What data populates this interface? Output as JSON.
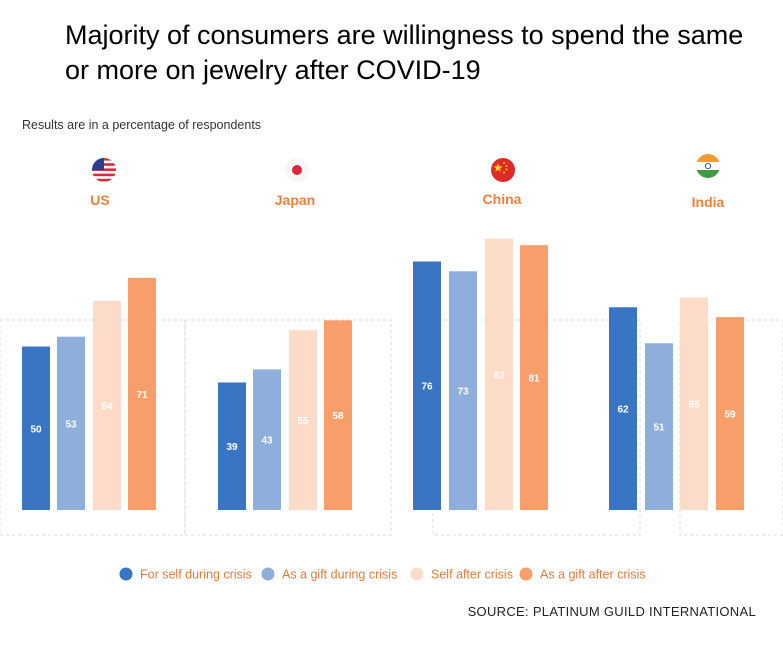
{
  "title": "Majority of consumers are willingness to spend the same or more on jewelry after COVID-19",
  "subtitle": "Results are in a percentage of respondents",
  "source": "SOURCE: PLATINUM GUILD INTERNATIONAL",
  "colors": {
    "country_label": "#f07f3c",
    "panel_border": "#d9d9d9"
  },
  "chart_data": {
    "type": "bar",
    "categories": [
      "US",
      "Japan",
      "China",
      "India"
    ],
    "category_icons": [
      "us-flag-icon",
      "japan-flag-icon",
      "china-flag-icon",
      "india-flag-icon"
    ],
    "series": [
      {
        "name": "For self during crisis",
        "color": "#3a75c4",
        "label_color": "#ffffff",
        "values": [
          50,
          39,
          76,
          62
        ]
      },
      {
        "name": "As a gift during crisis",
        "color": "#8eaedb",
        "label_color": "#ffffff",
        "values": [
          53,
          43,
          73,
          51
        ]
      },
      {
        "name": "Self after crisis",
        "color": "#fcdcc9",
        "label_color": "#ffffff",
        "values": [
          64,
          55,
          83,
          65
        ]
      },
      {
        "name": "As a gift after crisis",
        "color": "#f79e6b",
        "label_color": "#ffffff",
        "values": [
          71,
          58,
          81,
          59
        ]
      }
    ],
    "ylim": [
      0,
      100
    ],
    "grid": false,
    "legend_position": "bottom"
  }
}
